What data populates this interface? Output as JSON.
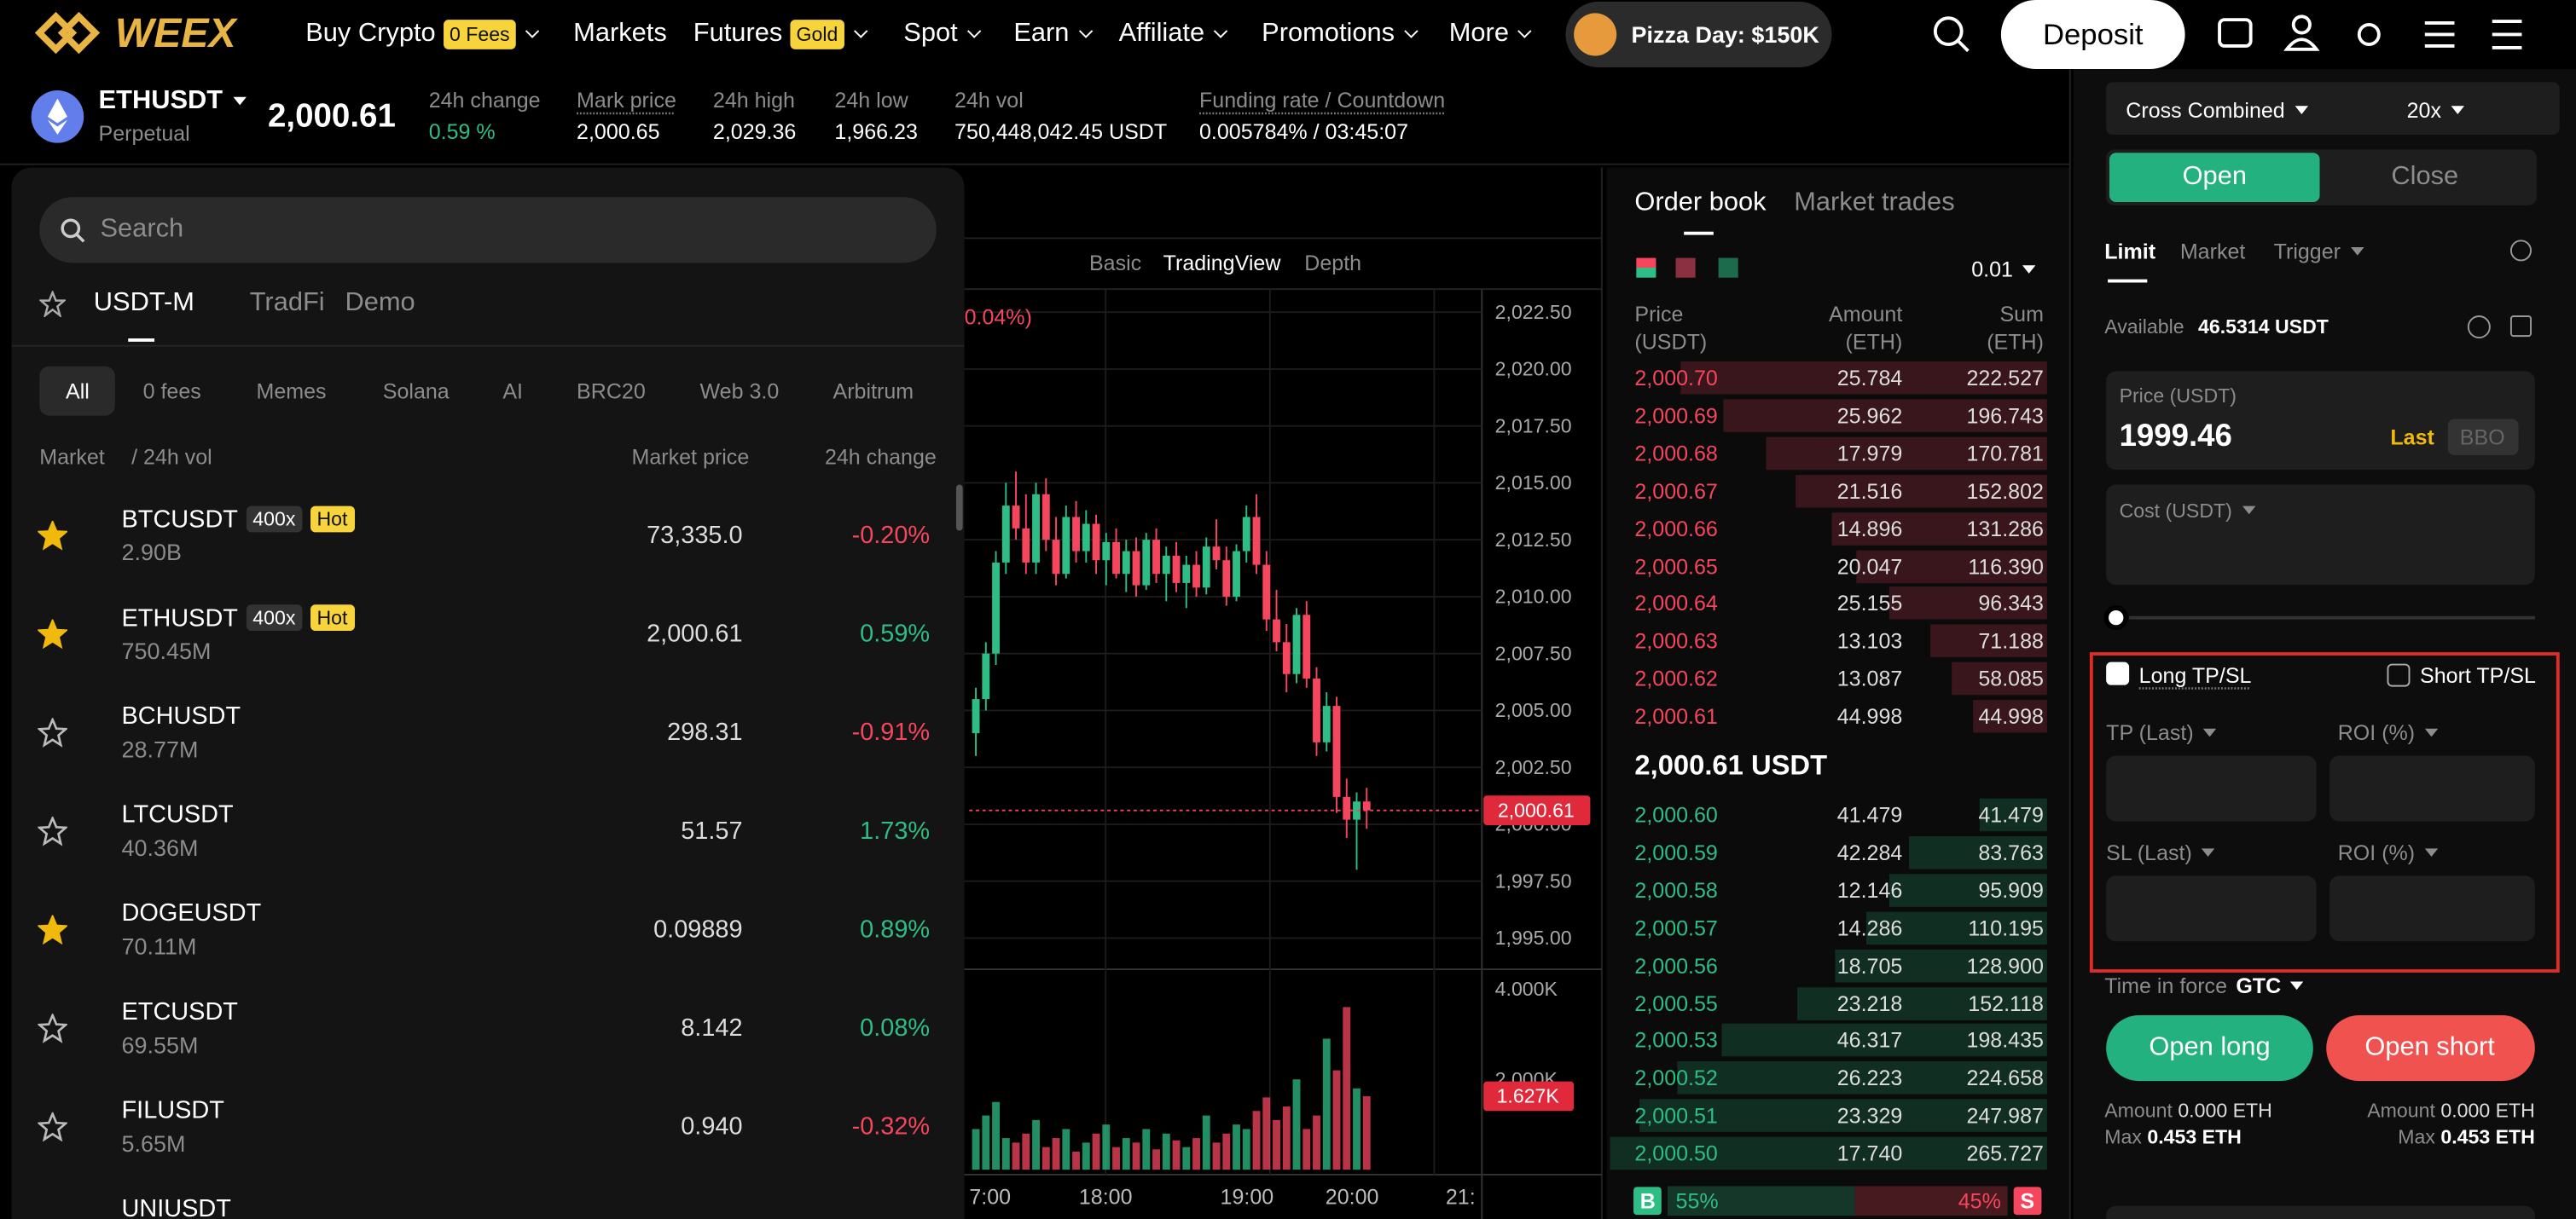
{
  "nav": {
    "logo": "WEEX",
    "items": [
      "Buy Crypto",
      "Markets",
      "Futures",
      "Spot",
      "Earn",
      "Affiliate",
      "Promotions",
      "More"
    ],
    "badges": [
      "0 Fees",
      "Gold"
    ],
    "promo": "Pizza Day: $150K",
    "deposit": "Deposit"
  },
  "ticker": {
    "symbol": "ETHUSDT",
    "contract": "Perpetual",
    "price": "2,000.61",
    "stats": [
      {
        "label": "24h change",
        "value": "0.59 %"
      },
      {
        "label": "Mark price",
        "value": "2,000.65"
      },
      {
        "label": "24h high",
        "value": "2,029.36"
      },
      {
        "label": "24h low",
        "value": "1,966.23"
      },
      {
        "label": "24h vol",
        "value": "750,448,042.45 USDT"
      },
      {
        "label": "Funding rate / Countdown",
        "value": "0.005784% / 03:45:07"
      }
    ]
  },
  "market_panel": {
    "search": "Search",
    "tabs": [
      "USDT-M",
      "TradFi",
      "Demo"
    ],
    "filters": [
      "All",
      "0 fees",
      "Memes",
      "Solana",
      "AI",
      "BRC20",
      "Web 3.0",
      "Arbitrum"
    ],
    "columns": [
      "Market",
      "/ 24h vol",
      "Market price",
      "24h change"
    ],
    "rows": [
      {
        "symbol": "BTCUSDT",
        "leverage": "400x",
        "tag": "Hot",
        "volume": "2.90B",
        "price": "73,335.0",
        "change": "-0.20%",
        "starred": true
      },
      {
        "symbol": "ETHUSDT",
        "leverage": "400x",
        "tag": "Hot",
        "volume": "750.45M",
        "price": "2,000.61",
        "change": "0.59%",
        "starred": true
      },
      {
        "symbol": "BCHUSDT",
        "volume": "28.77M",
        "price": "298.31",
        "change": "-0.91%",
        "starred": false
      },
      {
        "symbol": "LTCUSDT",
        "volume": "40.36M",
        "price": "51.57",
        "change": "1.73%",
        "starred": false
      },
      {
        "symbol": "DOGEUSDT",
        "volume": "70.11M",
        "price": "0.09889",
        "change": "0.89%",
        "starred": true
      },
      {
        "symbol": "ETCUSDT",
        "volume": "69.55M",
        "price": "8.142",
        "change": "0.08%",
        "starred": false
      },
      {
        "symbol": "FILUSDT",
        "volume": "5.65M",
        "price": "0.940",
        "change": "-0.32%",
        "starred": false
      },
      {
        "symbol": "UNIUSDT"
      }
    ]
  },
  "chart": {
    "toolbar": [
      "Basic",
      "TradingView",
      "Depth"
    ],
    "overlay_text": "0.04%)",
    "price_ticks": [
      {
        "value": 2022.5,
        "label": "2,022.50"
      },
      {
        "value": 2020,
        "label": "2,020.00"
      },
      {
        "value": 2017.5,
        "label": "2,017.50"
      },
      {
        "value": 2015,
        "label": "2,015.00"
      },
      {
        "value": 2012.5,
        "label": "2,012.50"
      },
      {
        "value": 2010,
        "label": "2,010.00"
      },
      {
        "value": 2007.5,
        "label": "2,007.50"
      },
      {
        "value": 2005,
        "label": "2,005.00"
      },
      {
        "value": 2002.5,
        "label": "2,002.50"
      },
      {
        "value": 2000,
        "label": "2,000.00"
      },
      {
        "value": 1997.5,
        "label": "1,997.50"
      },
      {
        "value": 1995,
        "label": "1,995.00"
      }
    ],
    "last_price": {
      "value": 2000.61,
      "label": "2,000.61"
    },
    "candles": [
      [
        2004,
        2006,
        2003,
        2005.5
      ],
      [
        2005.5,
        2008,
        2005,
        2007.5
      ],
      [
        2007.5,
        2012,
        2007,
        2011.5
      ],
      [
        2011.5,
        2015,
        2011,
        2014
      ],
      [
        2014,
        2015.5,
        2012.5,
        2013
      ],
      [
        2013,
        2014.5,
        2011,
        2011.5
      ],
      [
        2011.5,
        2015,
        2011,
        2014.5
      ],
      [
        2014.5,
        2015.2,
        2012,
        2012.5
      ],
      [
        2012.5,
        2013.5,
        2010.5,
        2011
      ],
      [
        2011,
        2014,
        2010.8,
        2013.5
      ],
      [
        2013.5,
        2014.2,
        2011.5,
        2012
      ],
      [
        2012,
        2013.8,
        2011.5,
        2013.2
      ],
      [
        2013.2,
        2013.6,
        2011,
        2011.6
      ],
      [
        2011.6,
        2012.8,
        2010.5,
        2012.4
      ],
      [
        2012.4,
        2013,
        2010.8,
        2011
      ],
      [
        2011,
        2012.5,
        2010.2,
        2012
      ],
      [
        2012,
        2012.6,
        2010,
        2010.5
      ],
      [
        2010.5,
        2012.8,
        2010.3,
        2012.5
      ],
      [
        2012.5,
        2013,
        2010.6,
        2011
      ],
      [
        2011,
        2012.2,
        2009.8,
        2011.8
      ],
      [
        2011.8,
        2012.4,
        2010.2,
        2010.6
      ],
      [
        2010.6,
        2011.8,
        2009.5,
        2011.4
      ],
      [
        2011.4,
        2012,
        2010,
        2010.4
      ],
      [
        2010.4,
        2012.6,
        2010.1,
        2012.2
      ],
      [
        2012.2,
        2013.4,
        2011.2,
        2011.6
      ],
      [
        2011.6,
        2012.2,
        2009.6,
        2010
      ],
      [
        2010,
        2012.3,
        2009.8,
        2012
      ],
      [
        2012,
        2014,
        2011.5,
        2013.5
      ],
      [
        2013.5,
        2014.5,
        2011,
        2011.4
      ],
      [
        2011.4,
        2012,
        2008.5,
        2009
      ],
      [
        2009,
        2010.3,
        2007.6,
        2008
      ],
      [
        2008,
        2008.8,
        2005.8,
        2006.6
      ],
      [
        2006.6,
        2009.5,
        2006.2,
        2009.2
      ],
      [
        2009.2,
        2009.8,
        2006,
        2006.4
      ],
      [
        2006.4,
        2006.9,
        2003,
        2003.6
      ],
      [
        2003.6,
        2005.8,
        2003.2,
        2005.2
      ],
      [
        2005.2,
        2005.6,
        2000.5,
        2001.2
      ],
      [
        2001.2,
        2002,
        1999.4,
        2000.2
      ],
      [
        2000.2,
        2001.4,
        1998,
        2001
      ],
      [
        2001,
        2001.6,
        1999.8,
        2000.61
      ]
    ],
    "volume_ticks": [
      {
        "value": 4000,
        "label": "4.000K"
      },
      {
        "value": 2000,
        "label": "2.000K"
      }
    ],
    "volume_last": {
      "value": 1627,
      "label": "1.627K"
    },
    "volumes": [
      900,
      1200,
      1500,
      700,
      600,
      800,
      1100,
      500,
      700,
      900,
      400,
      600,
      800,
      1000,
      500,
      700,
      600,
      900,
      450,
      800,
      650,
      500,
      700,
      1200,
      600,
      800,
      1000,
      900,
      1300,
      1600,
      1100,
      1400,
      2000,
      900,
      1200,
      2900,
      2200,
      3600,
      1800,
      1627
    ],
    "time_labels": [
      "7:00",
      "18:00",
      "19:00",
      "20:00",
      "21:"
    ]
  },
  "order_book": {
    "tabs": [
      "Order book",
      "Market trades"
    ],
    "precision": "0.01",
    "headers": [
      [
        "Price",
        "(USDT)"
      ],
      [
        "Amount",
        "(ETH)"
      ],
      [
        "Sum",
        "(ETH)"
      ]
    ],
    "asks": [
      {
        "price": "2,000.70",
        "amount": 25.784,
        "sum": 222.527
      },
      {
        "price": "2,000.69",
        "amount": 25.962,
        "sum": 196.743
      },
      {
        "price": "2,000.68",
        "amount": 17.979,
        "sum": 170.781
      },
      {
        "price": "2,000.67",
        "amount": 21.516,
        "sum": 152.802
      },
      {
        "price": "2,000.66",
        "amount": 14.896,
        "sum": 131.286
      },
      {
        "price": "2,000.65",
        "amount": 20.047,
        "sum": {
          "value": 116.39,
          "label": "116.390"
        }
      },
      {
        "price": "2,000.64",
        "amount": 25.155,
        "sum": 96.343
      },
      {
        "price": "2,000.63",
        "amount": 13.103,
        "sum": 71.188
      },
      {
        "price": "2,000.62",
        "amount": 13.087,
        "sum": 58.085
      },
      {
        "price": "2,000.61",
        "amount": 44.998,
        "sum": 44.998
      }
    ],
    "mid_price": "2,000.61 USDT",
    "bids": [
      {
        "price": "2,000.60",
        "amount": 41.479,
        "sum": 41.479
      },
      {
        "price": "2,000.59",
        "amount": 42.284,
        "sum": 83.763
      },
      {
        "price": "2,000.58",
        "amount": 12.146,
        "sum": 95.909
      },
      {
        "price": "2,000.57",
        "amount": 14.286,
        "sum": 110.195
      },
      {
        "price": "2,000.56",
        "amount": 18.705,
        "sum": {
          "value": 128.9,
          "label": "128.900"
        }
      },
      {
        "price": "2,000.55",
        "amount": 23.218,
        "sum": 152.118
      },
      {
        "price": "2,000.53",
        "amount": 46.317,
        "sum": 198.435
      },
      {
        "price": "2,000.52",
        "amount": 26.223,
        "sum": 224.658
      },
      {
        "price": "2,000.51",
        "amount": 23.329,
        "sum": 247.987
      },
      {
        "price": "2,000.50",
        "amount": {
          "value": 17.74,
          "label": "17.740"
        },
        "sum": 265.727
      }
    ],
    "ratio": {
      "buy_tag": "B",
      "buy": {
        "value": 55,
        "label": "55%"
      },
      "sell": {
        "value": 45,
        "label": "45%"
      },
      "sell_tag": "S"
    }
  },
  "order_form": {
    "margin_mode": "Cross Combined",
    "leverage": "20x",
    "sides": [
      "Open",
      "Close"
    ],
    "order_types": [
      "Limit",
      "Market",
      "Trigger"
    ],
    "available_label": "Available",
    "available": "46.5314 USDT",
    "price_label": "Price (USDT)",
    "price": "1999.46",
    "price_source": "Last",
    "bbo": "BBO",
    "cost_label": "Cost (USDT)",
    "tpsl": [
      "Long TP/SL",
      "Short TP/SL"
    ],
    "tp_label": "TP (Last)",
    "sl_label": "SL (Last)",
    "roi_label": "ROI (%)",
    "tif_label": "Time in force",
    "tif": "GTC",
    "buttons": [
      "Open long",
      "Open short"
    ],
    "amount_label": "Amount",
    "amount": "0.000 ETH",
    "max_label": "Max",
    "max": "0.453 ETH"
  }
}
